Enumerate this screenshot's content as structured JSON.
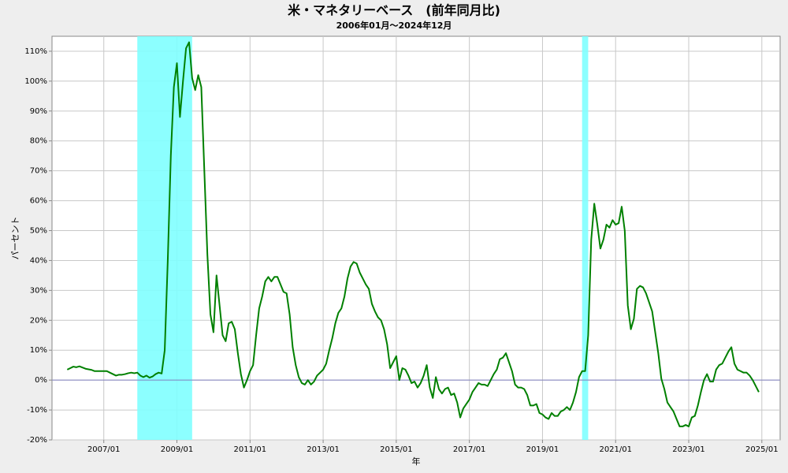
{
  "chart_data": {
    "type": "line",
    "title": "米・マネタリーベース　(前年同月比)",
    "subtitle": "2006年01月～2024年12月",
    "x_label": "年",
    "y_label": "パーセント",
    "x": [
      "2006/01",
      "2006/02",
      "2006/03",
      "2006/04",
      "2006/05",
      "2006/06",
      "2006/07",
      "2006/08",
      "2006/09",
      "2006/10",
      "2006/11",
      "2006/12",
      "2007/01",
      "2007/02",
      "2007/03",
      "2007/04",
      "2007/05",
      "2007/06",
      "2007/07",
      "2007/08",
      "2007/09",
      "2007/10",
      "2007/11",
      "2007/12",
      "2008/01",
      "2008/02",
      "2008/03",
      "2008/04",
      "2008/05",
      "2008/06",
      "2008/07",
      "2008/08",
      "2008/09",
      "2008/10",
      "2008/11",
      "2008/12",
      "2009/01",
      "2009/02",
      "2009/03",
      "2009/04",
      "2009/05",
      "2009/06",
      "2009/07",
      "2009/08",
      "2009/09",
      "2009/10",
      "2009/11",
      "2009/12",
      "2010/01",
      "2010/02",
      "2010/03",
      "2010/04",
      "2010/05",
      "2010/06",
      "2010/07",
      "2010/08",
      "2010/09",
      "2010/10",
      "2010/11",
      "2010/12",
      "2011/01",
      "2011/02",
      "2011/03",
      "2011/04",
      "2011/05",
      "2011/06",
      "2011/07",
      "2011/08",
      "2011/09",
      "2011/10",
      "2011/11",
      "2011/12",
      "2012/01",
      "2012/02",
      "2012/03",
      "2012/04",
      "2012/05",
      "2012/06",
      "2012/07",
      "2012/08",
      "2012/09",
      "2012/10",
      "2012/11",
      "2012/12",
      "2013/01",
      "2013/02",
      "2013/03",
      "2013/04",
      "2013/05",
      "2013/06",
      "2013/07",
      "2013/08",
      "2013/09",
      "2013/10",
      "2013/11",
      "2013/12",
      "2014/01",
      "2014/02",
      "2014/03",
      "2014/04",
      "2014/05",
      "2014/06",
      "2014/07",
      "2014/08",
      "2014/09",
      "2014/10",
      "2014/11",
      "2014/12",
      "2015/01",
      "2015/02",
      "2015/03",
      "2015/04",
      "2015/05",
      "2015/06",
      "2015/07",
      "2015/08",
      "2015/09",
      "2015/10",
      "2015/11",
      "2015/12",
      "2016/01",
      "2016/02",
      "2016/03",
      "2016/04",
      "2016/05",
      "2016/06",
      "2016/07",
      "2016/08",
      "2016/09",
      "2016/10",
      "2016/11",
      "2016/12",
      "2017/01",
      "2017/02",
      "2017/03",
      "2017/04",
      "2017/05",
      "2017/06",
      "2017/07",
      "2017/08",
      "2017/09",
      "2017/10",
      "2017/11",
      "2017/12",
      "2018/01",
      "2018/02",
      "2018/03",
      "2018/04",
      "2018/05",
      "2018/06",
      "2018/07",
      "2018/08",
      "2018/09",
      "2018/10",
      "2018/11",
      "2018/12",
      "2019/01",
      "2019/02",
      "2019/03",
      "2019/04",
      "2019/05",
      "2019/06",
      "2019/07",
      "2019/08",
      "2019/09",
      "2019/10",
      "2019/11",
      "2019/12",
      "2020/01",
      "2020/02",
      "2020/03",
      "2020/04",
      "2020/05",
      "2020/06",
      "2020/07",
      "2020/08",
      "2020/09",
      "2020/10",
      "2020/11",
      "2020/12",
      "2021/01",
      "2021/02",
      "2021/03",
      "2021/04",
      "2021/05",
      "2021/06",
      "2021/07",
      "2021/08",
      "2021/09",
      "2021/10",
      "2021/11",
      "2021/12",
      "2022/01",
      "2022/02",
      "2022/03",
      "2022/04",
      "2022/05",
      "2022/06",
      "2022/07",
      "2022/08",
      "2022/09",
      "2022/10",
      "2022/11",
      "2022/12",
      "2023/01",
      "2023/02",
      "2023/03",
      "2023/04",
      "2023/05",
      "2023/06",
      "2023/07",
      "2023/08",
      "2023/09",
      "2023/10",
      "2023/11",
      "2023/12",
      "2024/01",
      "2024/02",
      "2024/03",
      "2024/04",
      "2024/05",
      "2024/06",
      "2024/07",
      "2024/08",
      "2024/09",
      "2024/10",
      "2024/11",
      "2024/12"
    ],
    "series": [
      {
        "color": "#008000",
        "values": [
          3.5,
          4,
          4.5,
          4.3,
          4.6,
          4.2,
          3.8,
          3.6,
          3.4,
          3,
          3,
          3,
          3,
          3,
          2.5,
          2,
          1.5,
          1.8,
          1.8,
          2,
          2.3,
          2.5,
          2.3,
          2.5,
          1.5,
          1,
          1.5,
          0.8,
          1.2,
          2,
          2.5,
          2.2,
          10,
          40,
          75,
          98,
          106,
          88,
          100,
          111,
          113,
          101,
          97,
          102,
          98,
          70,
          42,
          22,
          16,
          35,
          25,
          15,
          13,
          19,
          19.5,
          17,
          9,
          2,
          -2.5,
          0,
          3,
          5,
          15,
          24,
          28,
          33,
          34.5,
          33,
          34.5,
          34.5,
          32,
          29.5,
          29,
          22,
          11,
          5,
          1,
          -1,
          -1.5,
          0,
          -1.5,
          -0.5,
          1.5,
          2.5,
          3.5,
          5.5,
          10,
          14,
          19,
          22.5,
          24,
          28,
          34,
          38,
          39.5,
          39,
          36,
          34,
          32,
          30.5,
          25.5,
          23,
          21,
          20,
          17,
          12,
          4,
          6,
          8,
          0,
          4,
          3.5,
          1.5,
          -1,
          -0.5,
          -2.5,
          -1,
          1.5,
          5,
          -2.5,
          -6,
          1,
          -3,
          -4.5,
          -3,
          -2.5,
          -5,
          -4.5,
          -7.5,
          -12.5,
          -9.5,
          -8,
          -6.5,
          -4,
          -2.5,
          -1,
          -1.5,
          -1.5,
          -2,
          0,
          2,
          3.5,
          7,
          7.5,
          9,
          6,
          3,
          -1.5,
          -2.5,
          -2.5,
          -3,
          -5,
          -8.5,
          -8.5,
          -8,
          -11,
          -11.5,
          -12.5,
          -13,
          -11,
          -12,
          -12,
          -10.5,
          -10,
          -9,
          -10,
          -7.5,
          -4,
          1,
          3,
          3,
          15,
          47,
          59,
          52,
          44,
          47,
          52,
          51,
          53.5,
          52,
          52.5,
          58,
          50,
          25,
          17,
          20.5,
          30.5,
          31.5,
          31,
          29,
          26,
          23,
          16,
          9,
          0.5,
          -3,
          -7.5,
          -9,
          -10.5,
          -13,
          -15.5,
          -15.5,
          -15,
          -15.5,
          -12.5,
          -12,
          -8.5,
          -4,
          0,
          2,
          -0.5,
          -0.5,
          3.5,
          5,
          5.5,
          7.5,
          9.5,
          11,
          5.5,
          3.5,
          3,
          2.5,
          2.5,
          1.5,
          0,
          -2,
          -4
        ]
      }
    ],
    "shaded_periods": [
      [
        "2007/12",
        "2009/06"
      ],
      [
        "2020/02",
        "2020/04"
      ]
    ],
    "shade_color": "#80ffff",
    "zero_line_color": "#8080c0",
    "xlim": [
      "2005/08",
      "2025/07"
    ],
    "xticks": [
      "2007/01",
      "2009/01",
      "2011/01",
      "2013/01",
      "2015/01",
      "2017/01",
      "2019/01",
      "2021/01",
      "2023/01",
      "2025/01"
    ],
    "ylim": [
      -20,
      115
    ],
    "yticks": [
      {
        "value": -20,
        "label": "-20%"
      },
      {
        "value": -10,
        "label": "-10%"
      },
      {
        "value": 0,
        "label": "0%"
      },
      {
        "value": 10,
        "label": "10%"
      },
      {
        "value": 20,
        "label": "20%"
      },
      {
        "value": 30,
        "label": "30%"
      },
      {
        "value": 40,
        "label": "40%"
      },
      {
        "value": 50,
        "label": "50%"
      },
      {
        "value": 60,
        "label": "60%"
      },
      {
        "value": 70,
        "label": "70%"
      },
      {
        "value": 80,
        "label": "80%"
      },
      {
        "value": 90,
        "label": "90%"
      },
      {
        "value": 100,
        "label": "100%"
      },
      {
        "value": 110,
        "label": "110%"
      }
    ],
    "grid": true
  }
}
